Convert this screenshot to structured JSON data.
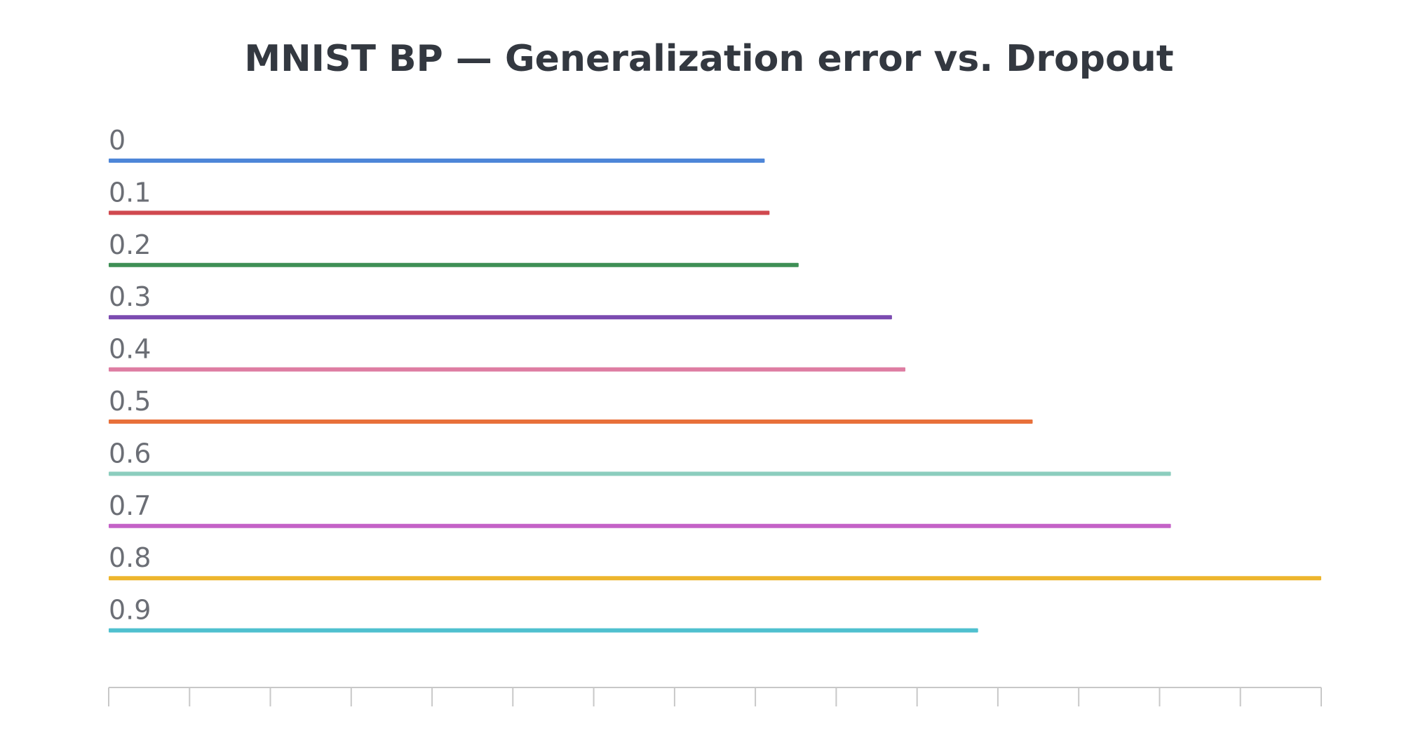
{
  "chart_data": {
    "type": "bar",
    "orientation": "horizontal",
    "title": "MNIST BP — Generalization error vs. Dropout",
    "xlabel": "",
    "ylabel": "",
    "categories": [
      "0",
      "0.1",
      "0.2",
      "0.3",
      "0.4",
      "0.5",
      "0.6",
      "0.7",
      "0.8",
      "0.9"
    ],
    "values": [
      0.541,
      0.545,
      0.569,
      0.646,
      0.657,
      0.762,
      0.876,
      0.876,
      1.0,
      0.717
    ],
    "value_units": "fraction of the largest bar (axis tick labels not shown)",
    "colors": [
      "#4e86d8",
      "#d0494f",
      "#3e8f55",
      "#7b4bb0",
      "#de7da2",
      "#e8703a",
      "#8ccdbe",
      "#c462c7",
      "#edb52d",
      "#4fc0cf"
    ],
    "x_axis": {
      "tick_labels_visible": false
    },
    "grid": false,
    "legend": "none"
  }
}
